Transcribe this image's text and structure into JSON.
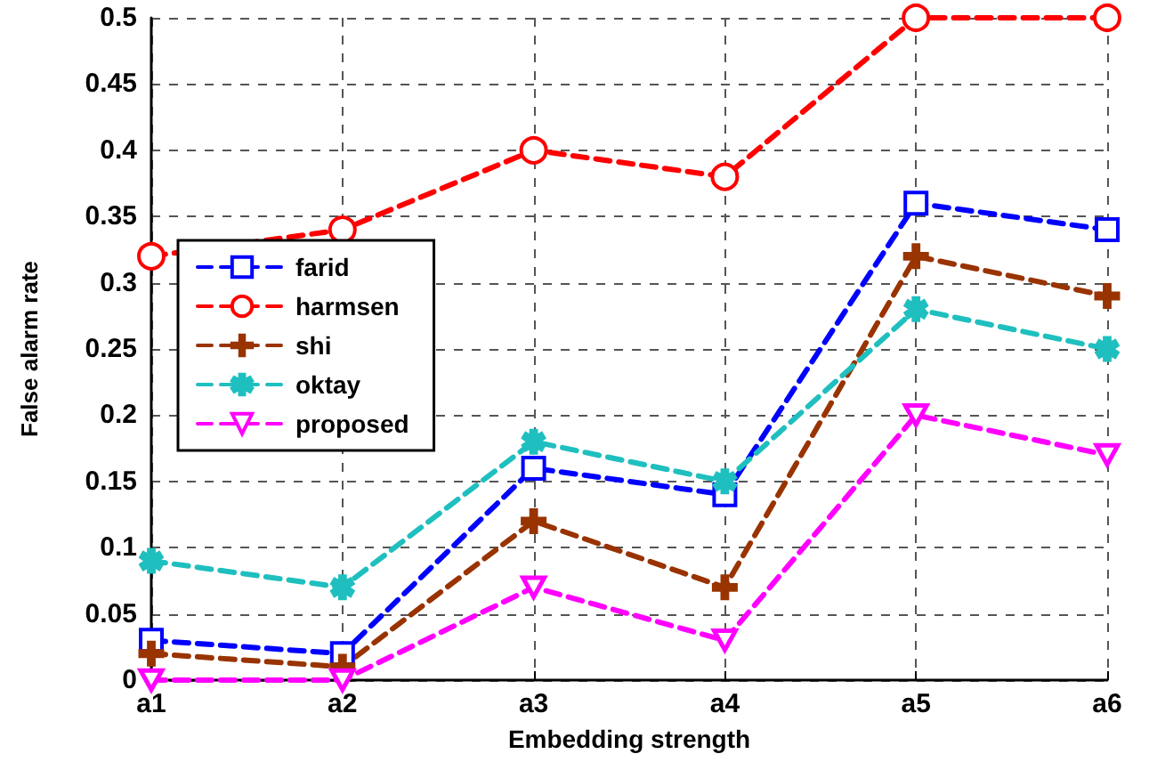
{
  "chart_data": {
    "type": "line",
    "categories": [
      "a1",
      "a2",
      "a3",
      "a4",
      "a5",
      "a6"
    ],
    "xlabel": "Embedding strength",
    "ylabel": "False alarm rate",
    "ylim": [
      0,
      0.5
    ],
    "yticks": [
      0,
      0.05,
      0.1,
      0.15,
      0.2,
      0.25,
      0.3,
      0.35,
      0.4,
      0.45,
      0.5
    ],
    "grid": true,
    "legend": "left",
    "line_style": "dashed",
    "series": [
      {
        "name": "farid",
        "color": "#0000ff",
        "marker": "square",
        "values": [
          0.03,
          0.02,
          0.16,
          0.14,
          0.36,
          0.34
        ]
      },
      {
        "name": "harmsen",
        "color": "#ff0000",
        "marker": "circle",
        "values": [
          0.32,
          0.34,
          0.4,
          0.38,
          0.5,
          0.5
        ]
      },
      {
        "name": "shi",
        "color": "#993300",
        "marker": "cross",
        "values": [
          0.02,
          0.01,
          0.12,
          0.07,
          0.32,
          0.29
        ]
      },
      {
        "name": "oktay",
        "color": "#1fbfbf",
        "marker": "star",
        "values": [
          0.09,
          0.07,
          0.18,
          0.15,
          0.28,
          0.25
        ]
      },
      {
        "name": "proposed",
        "color": "#ff00ff",
        "marker": "triangle",
        "values": [
          0,
          0,
          0.07,
          0.03,
          0.2,
          0.17
        ]
      }
    ]
  }
}
